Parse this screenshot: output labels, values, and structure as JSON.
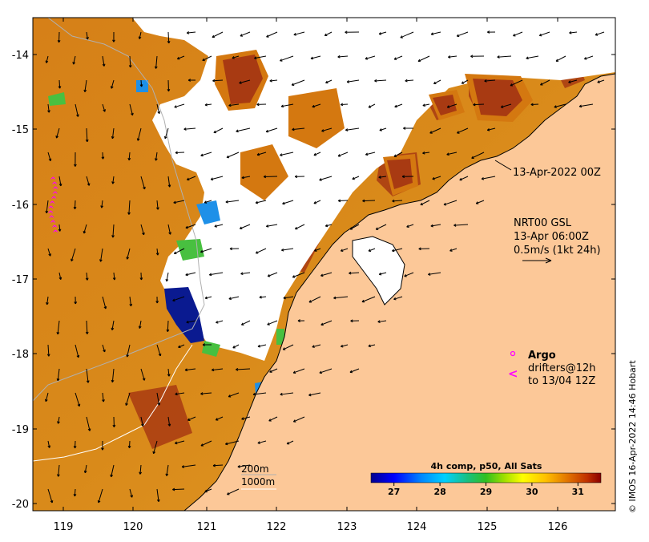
{
  "map": {
    "colors": {
      "land": "#fcc898",
      "cloud": "#ffffff",
      "frame": "#000000",
      "drifter": "#ff00ff",
      "bathy_200": "#b0b0b0",
      "bathy_1000": "#ffffff",
      "sst_warm": "#d97e10",
      "sst_hot": "#a83a12",
      "sst_cool": "#1e90e8",
      "sst_cold": "#0a1a90"
    },
    "x_ticks": [
      "119",
      "120",
      "121",
      "122",
      "123",
      "124",
      "125",
      "126"
    ],
    "y_ticks": [
      "-14",
      "-15",
      "-16",
      "-17",
      "-18",
      "-19",
      "-20"
    ],
    "annotations": {
      "composite_time": "13-Apr-2022 00Z",
      "current_product": "NRT00 GSL",
      "current_time": "13-Apr 06:00Z",
      "current_scale": "0.5m/s (1kt 24h)"
    },
    "argo_legend": {
      "title": "Argo",
      "line1": "drifters@12h",
      "line2": "to 13/04 12Z"
    },
    "bathymetry_legend": {
      "line1": "200m",
      "line2": "1000m"
    },
    "colorbar": {
      "title": "4h comp, p50, All Sats",
      "ticks": [
        "27",
        "28",
        "29",
        "30",
        "31"
      ],
      "range": [
        26.5,
        31.5
      ]
    },
    "credit": "© IMOS 16-Apr-2022 14:46 Hobart",
    "drifter_path_icon": "magenta-chevron-track-icon"
  }
}
